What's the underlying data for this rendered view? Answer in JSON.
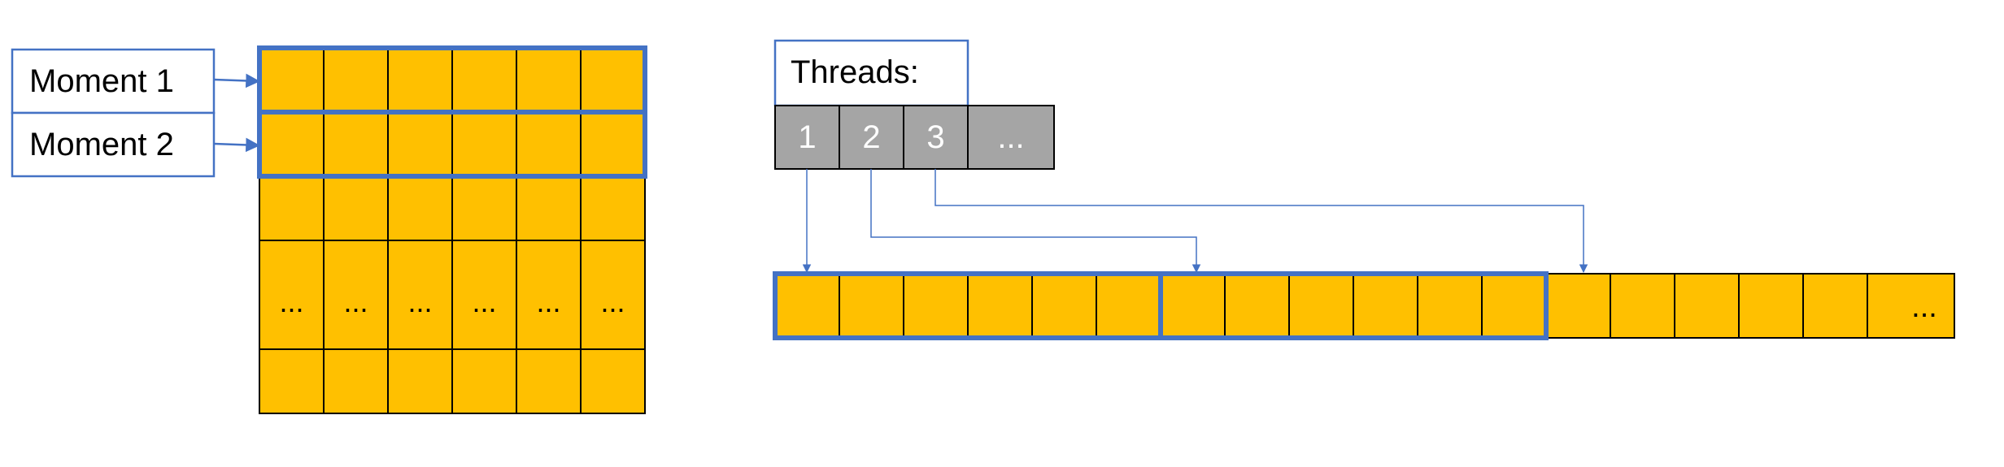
{
  "colors": {
    "cell_fill": "#FFC000",
    "cell_stroke": "#000000",
    "highlight_stroke": "#4472C4",
    "thread_fill": "#A5A5A5",
    "thread_text": "#FFFFFF",
    "label_text": "#000000"
  },
  "matrix": {
    "moment_labels": [
      "Moment 1",
      "Moment 2"
    ],
    "columns": 6,
    "ellipsis": "..."
  },
  "threads": {
    "label": "Threads:",
    "ids": [
      "1",
      "2",
      "3",
      "..."
    ]
  },
  "array": {
    "cell_count": 18,
    "trailing_label": "...",
    "group_size": 6,
    "highlighted_groups": 2
  }
}
